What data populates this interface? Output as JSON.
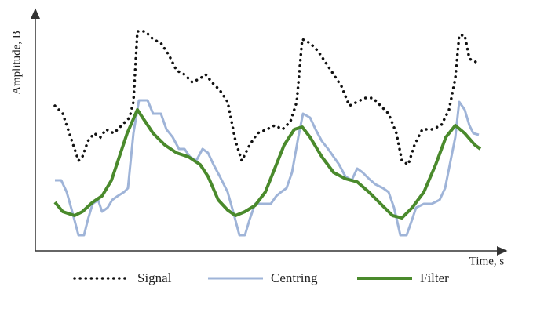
{
  "chart_data": {
    "type": "line",
    "y_label": "Amplitude, B",
    "x_label": "Time, s",
    "xlim": [
      0,
      580
    ],
    "ylim": [
      0,
      300
    ],
    "series": [
      {
        "name": "Signal",
        "color": "#111111",
        "style": "dotted",
        "x": [
          25,
          35,
          45,
          55,
          60,
          67,
          75,
          83,
          90,
          100,
          110,
          120,
          125,
          130,
          140,
          150,
          160,
          170,
          180,
          190,
          200,
          210,
          217,
          225,
          235,
          245,
          255,
          263,
          273,
          283,
          295,
          305,
          315,
          325,
          333,
          340,
          350,
          360,
          370,
          380,
          390,
          400,
          410,
          420,
          430,
          440,
          450,
          460,
          467,
          475,
          483,
          493,
          505,
          517,
          527,
          535,
          540,
          547,
          553,
          563
        ],
        "values": [
          185,
          175,
          145,
          115,
          120,
          140,
          150,
          145,
          155,
          150,
          160,
          170,
          190,
          280,
          280,
          270,
          265,
          250,
          230,
          225,
          215,
          220,
          225,
          215,
          205,
          190,
          140,
          115,
          135,
          150,
          155,
          160,
          155,
          165,
          190,
          270,
          265,
          255,
          240,
          225,
          210,
          185,
          190,
          195,
          195,
          185,
          175,
          150,
          115,
          110,
          135,
          155,
          155,
          160,
          180,
          220,
          275,
          275,
          245,
          240
        ]
      },
      {
        "name": "Centring",
        "color": "#9fb4d8",
        "style": "solid",
        "x": [
          25,
          33,
          40,
          47,
          55,
          62,
          67,
          73,
          80,
          85,
          92,
          98,
          105,
          113,
          118,
          125,
          132,
          143,
          150,
          160,
          167,
          175,
          183,
          190,
          197,
          205,
          213,
          220,
          227,
          235,
          245,
          252,
          260,
          267,
          273,
          280,
          290,
          300,
          307,
          313,
          320,
          327,
          335,
          341,
          350,
          357,
          365,
          373,
          380,
          387,
          395,
          403,
          410,
          417,
          425,
          433,
          443,
          450,
          457,
          465,
          473,
          480,
          485,
          495,
          505,
          515,
          522,
          528,
          535,
          540,
          547,
          553,
          558,
          565
        ],
        "values": [
          90,
          90,
          75,
          50,
          20,
          20,
          40,
          60,
          65,
          50,
          55,
          65,
          70,
          75,
          80,
          150,
          192,
          192,
          175,
          175,
          155,
          145,
          130,
          130,
          120,
          115,
          130,
          125,
          110,
          95,
          75,
          50,
          20,
          20,
          40,
          60,
          60,
          60,
          70,
          75,
          80,
          100,
          145,
          175,
          170,
          155,
          140,
          130,
          120,
          110,
          95,
          90,
          105,
          100,
          92,
          85,
          80,
          75,
          55,
          20,
          20,
          40,
          55,
          60,
          60,
          65,
          80,
          110,
          145,
          190,
          180,
          160,
          150,
          148
        ]
      },
      {
        "name": "Filter",
        "color": "#4a8a2c",
        "style": "solid",
        "x": [
          25,
          35,
          50,
          60,
          73,
          85,
          97,
          107,
          117,
          130,
          140,
          150,
          165,
          180,
          195,
          210,
          220,
          233,
          245,
          255,
          267,
          280,
          293,
          305,
          317,
          330,
          340,
          350,
          365,
          380,
          395,
          410,
          425,
          440,
          455,
          467,
          480,
          495,
          510,
          523,
          535,
          547,
          560,
          567
        ],
        "values": [
          62,
          50,
          45,
          50,
          62,
          70,
          90,
          120,
          150,
          180,
          165,
          150,
          135,
          125,
          120,
          110,
          95,
          65,
          52,
          45,
          50,
          58,
          75,
          105,
          135,
          155,
          158,
          145,
          120,
          100,
          92,
          88,
          75,
          60,
          45,
          42,
          55,
          75,
          110,
          145,
          160,
          150,
          135,
          130
        ]
      }
    ]
  }
}
